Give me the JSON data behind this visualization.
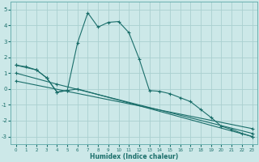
{
  "xlabel": "Humidex (Indice chaleur)",
  "bg_color": "#cce8e8",
  "grid_color": "#aad0d0",
  "line_color": "#1a6e6a",
  "spine_color": "#6ab0b0",
  "xlim": [
    -0.5,
    23.5
  ],
  "ylim": [
    -3.5,
    5.5
  ],
  "yticks": [
    -3,
    -2,
    -1,
    0,
    1,
    2,
    3,
    4,
    5
  ],
  "xticks": [
    0,
    1,
    2,
    3,
    4,
    5,
    6,
    7,
    8,
    9,
    10,
    11,
    12,
    13,
    14,
    15,
    16,
    17,
    18,
    19,
    20,
    21,
    22,
    23
  ],
  "line1_x": [
    0,
    1,
    2,
    3,
    4,
    5,
    6,
    7,
    8,
    9,
    10,
    11,
    12,
    13,
    14,
    15,
    16,
    17,
    18,
    19,
    20,
    21,
    22,
    23
  ],
  "line1_y": [
    1.5,
    1.4,
    1.2,
    0.7,
    -0.2,
    -0.1,
    2.9,
    4.8,
    3.9,
    4.2,
    4.25,
    3.55,
    1.9,
    -0.1,
    -0.15,
    -0.3,
    -0.55,
    -0.8,
    -1.3,
    -1.8,
    -2.35,
    -2.55,
    -2.8,
    -3.0
  ],
  "line2_x": [
    0,
    2,
    3,
    4,
    5,
    6,
    23
  ],
  "line2_y": [
    1.5,
    1.2,
    0.7,
    -0.2,
    -0.1,
    0.0,
    -3.0
  ],
  "line3_x": [
    0,
    4,
    23
  ],
  "line3_y": [
    1.0,
    0.3,
    -2.8
  ],
  "line4_x": [
    0,
    23
  ],
  "line4_y": [
    0.5,
    -2.5
  ]
}
